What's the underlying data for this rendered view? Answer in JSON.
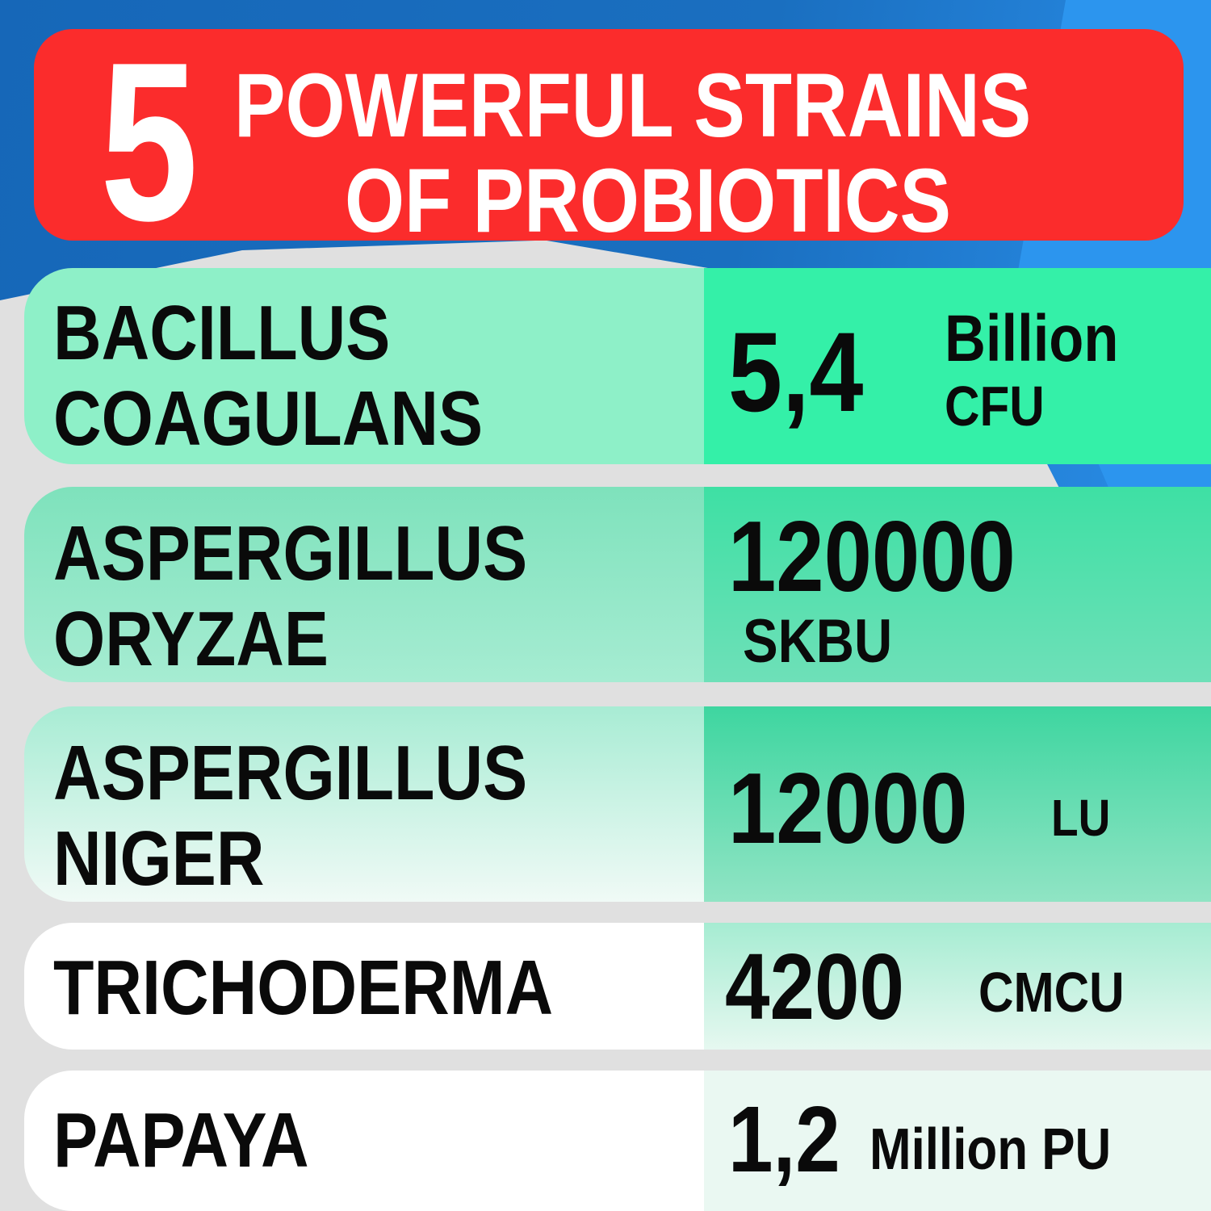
{
  "header": {
    "number": "5",
    "line1": "POWERFUL STRAINS",
    "line2": "OF PROBIOTICS"
  },
  "colors": {
    "banner": "#fb2c2c",
    "background_blue": "#1a6fc0",
    "row_green": "#34f0a8",
    "text": "#0a0a0a"
  },
  "strains": [
    {
      "name_line1": "BACILLUS",
      "name_line2": "COAGULANS",
      "amount": "5,4",
      "unit_line1": "Billion",
      "unit_line2": "CFU"
    },
    {
      "name_line1": "ASPERGILLUS",
      "name_line2": "ORYZAE",
      "amount": "120000",
      "unit": "SKBU"
    },
    {
      "name_line1": "ASPERGILLUS",
      "name_line2": "NIGER",
      "amount": "12000",
      "unit": "LU"
    },
    {
      "name": "TRICHODERMA",
      "amount": "4200",
      "unit": "CMCU"
    },
    {
      "name": "PAPAYA",
      "amount": "1,2",
      "unit": "Million PU"
    }
  ]
}
